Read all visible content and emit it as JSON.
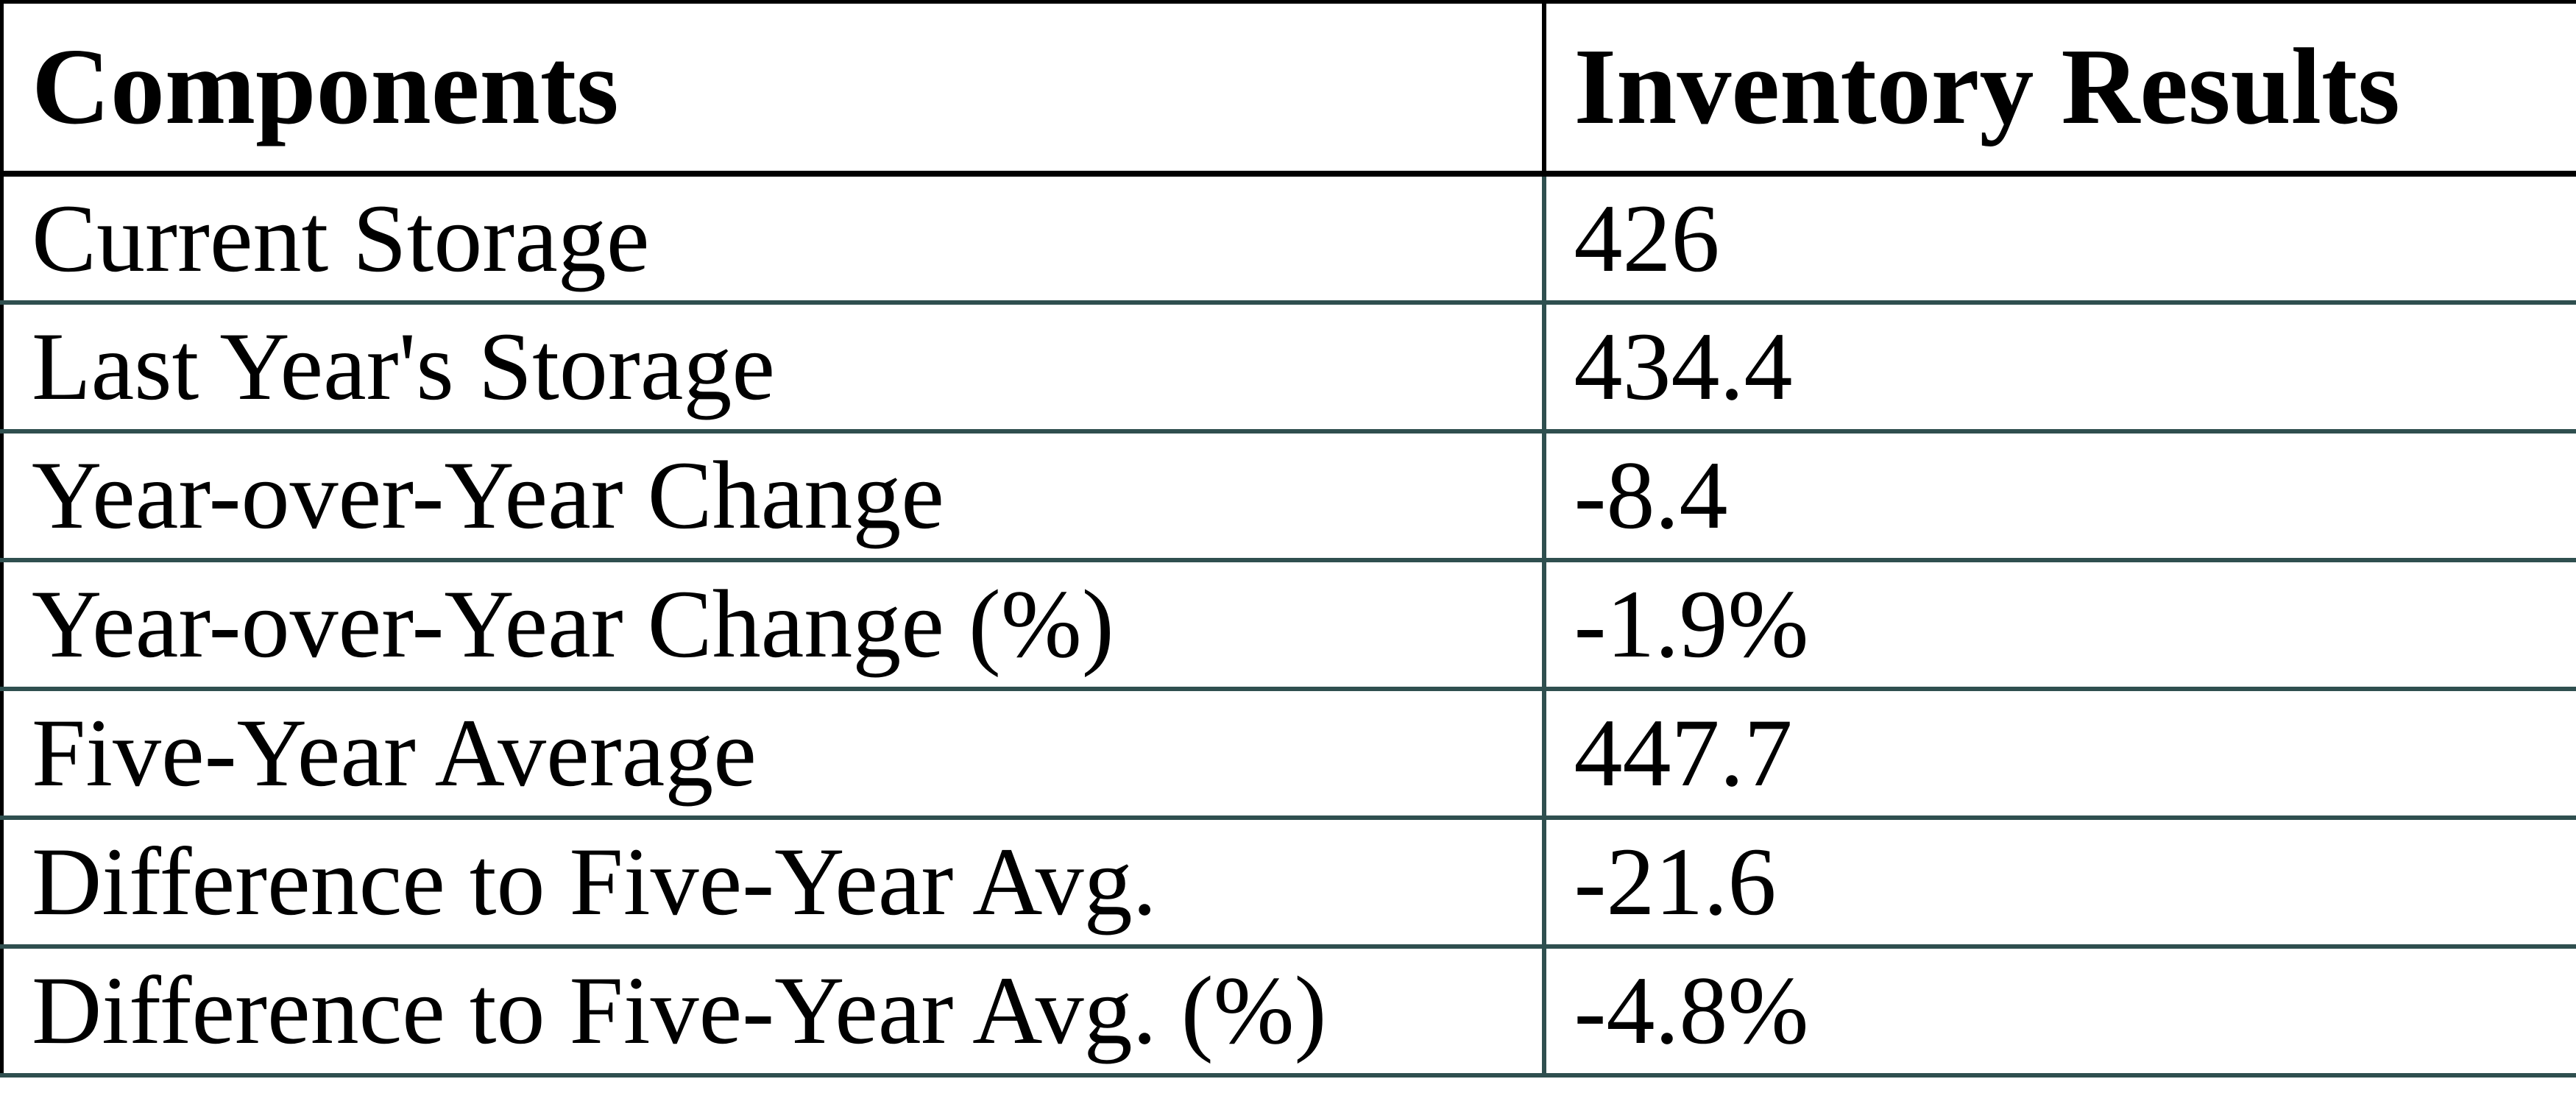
{
  "chart_data": {
    "type": "table",
    "columns": [
      "Components",
      "Inventory Results"
    ],
    "rows": [
      [
        "Current Storage",
        "426"
      ],
      [
        "Last Year's Storage",
        "434.4"
      ],
      [
        "Year-over-Year Change",
        "-8.4"
      ],
      [
        "Year-over-Year Change (%)",
        "-1.9%"
      ],
      [
        "Five-Year Average",
        "447.7"
      ],
      [
        "Difference to Five-Year Avg.",
        "-21.6"
      ],
      [
        "Difference to Five-Year Avg. (%)",
        "-4.8%"
      ]
    ],
    "layout": {
      "grid": "on",
      "header_position": "top"
    },
    "colors": {
      "grid_line": "#2f4f4f",
      "header_border": "#000000",
      "text": "#000000",
      "background": "#ffffff"
    }
  }
}
